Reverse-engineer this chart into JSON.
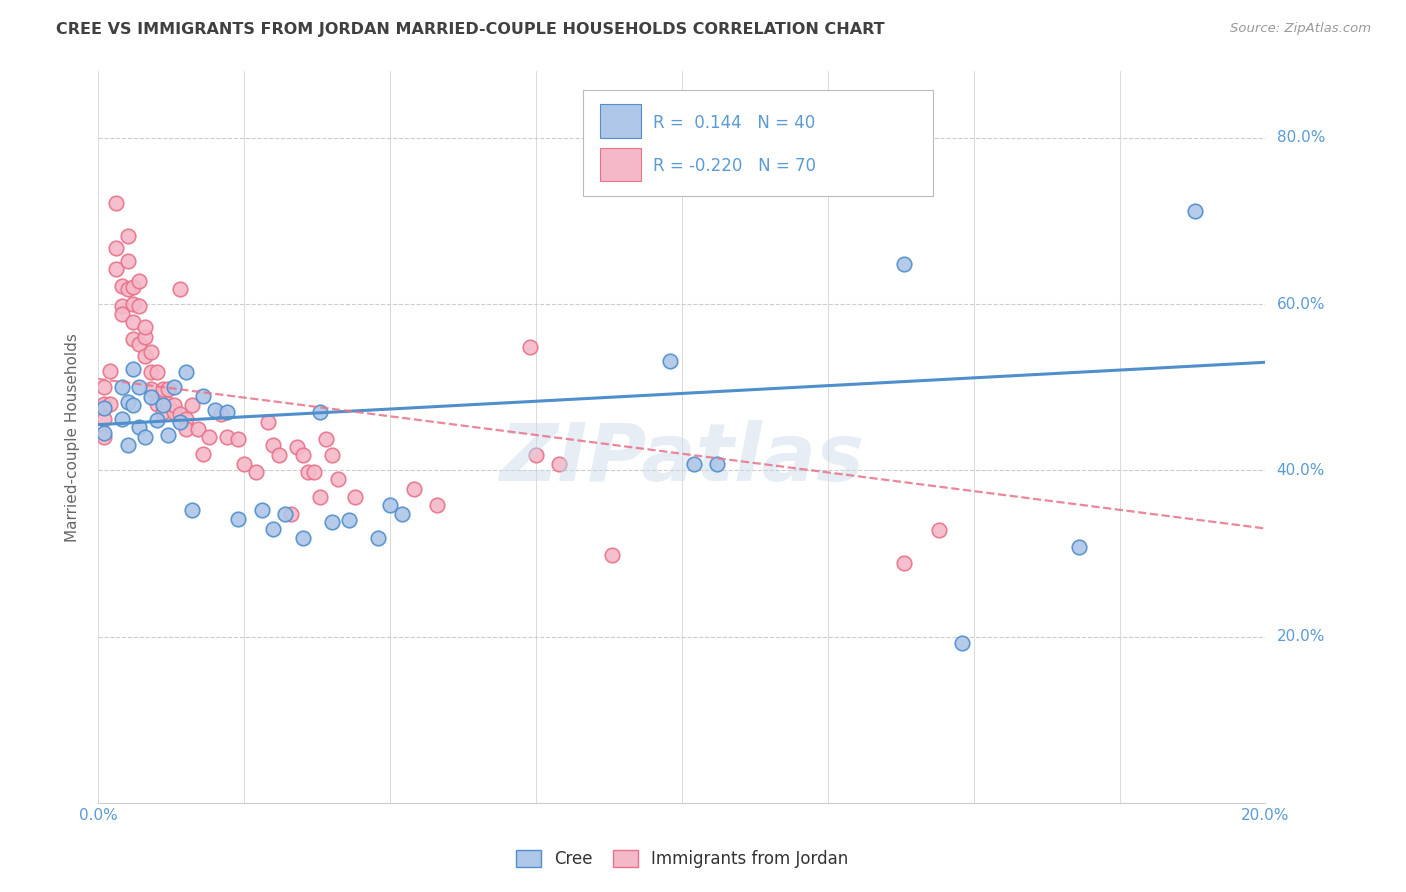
{
  "title": "CREE VS IMMIGRANTS FROM JORDAN MARRIED-COUPLE HOUSEHOLDS CORRELATION CHART",
  "source": "Source: ZipAtlas.com",
  "ylabel": "Married-couple Households",
  "xlim": [
    0.0,
    0.2
  ],
  "ylim": [
    0.0,
    0.88
  ],
  "yticks": [
    0.2,
    0.4,
    0.6,
    0.8
  ],
  "ytick_labels": [
    "20.0%",
    "40.0%",
    "60.0%",
    "80.0%"
  ],
  "xticks": [
    0.0,
    0.025,
    0.05,
    0.075,
    0.1,
    0.125,
    0.15,
    0.175,
    0.2
  ],
  "xtick_labels": [
    "0.0%",
    "",
    "",
    "",
    "",
    "",
    "",
    "",
    "20.0%"
  ],
  "legend_line1": "R =  0.144   N = 40",
  "legend_line2": "R = -0.220   N = 70",
  "cree_color": "#aec6e8",
  "jordan_color": "#f5b8c8",
  "line_cree_color": "#4f8fcc",
  "line_jordan_color": "#e8728a",
  "background_color": "#ffffff",
  "grid_color": "#cccccc",
  "title_color": "#404040",
  "axis_label_color": "#5b9bd5",
  "watermark": "ZIPatlas",
  "cree_scatter": [
    [
      0.001,
      0.445
    ],
    [
      0.001,
      0.475
    ],
    [
      0.004,
      0.5
    ],
    [
      0.004,
      0.462
    ],
    [
      0.005,
      0.43
    ],
    [
      0.005,
      0.482
    ],
    [
      0.006,
      0.522
    ],
    [
      0.006,
      0.478
    ],
    [
      0.007,
      0.452
    ],
    [
      0.007,
      0.5
    ],
    [
      0.008,
      0.44
    ],
    [
      0.009,
      0.488
    ],
    [
      0.01,
      0.46
    ],
    [
      0.011,
      0.478
    ],
    [
      0.012,
      0.442
    ],
    [
      0.013,
      0.5
    ],
    [
      0.014,
      0.458
    ],
    [
      0.015,
      0.518
    ],
    [
      0.016,
      0.352
    ],
    [
      0.018,
      0.49
    ],
    [
      0.02,
      0.472
    ],
    [
      0.022,
      0.47
    ],
    [
      0.024,
      0.342
    ],
    [
      0.028,
      0.352
    ],
    [
      0.03,
      0.33
    ],
    [
      0.032,
      0.348
    ],
    [
      0.035,
      0.318
    ],
    [
      0.038,
      0.47
    ],
    [
      0.04,
      0.338
    ],
    [
      0.043,
      0.34
    ],
    [
      0.048,
      0.318
    ],
    [
      0.05,
      0.358
    ],
    [
      0.052,
      0.348
    ],
    [
      0.098,
      0.532
    ],
    [
      0.102,
      0.408
    ],
    [
      0.106,
      0.408
    ],
    [
      0.138,
      0.648
    ],
    [
      0.148,
      0.192
    ],
    [
      0.168,
      0.308
    ],
    [
      0.188,
      0.712
    ]
  ],
  "jordan_scatter": [
    [
      0.001,
      0.5
    ],
    [
      0.001,
      0.48
    ],
    [
      0.001,
      0.462
    ],
    [
      0.001,
      0.44
    ],
    [
      0.002,
      0.48
    ],
    [
      0.002,
      0.52
    ],
    [
      0.003,
      0.722
    ],
    [
      0.003,
      0.668
    ],
    [
      0.003,
      0.642
    ],
    [
      0.004,
      0.622
    ],
    [
      0.004,
      0.598
    ],
    [
      0.004,
      0.588
    ],
    [
      0.005,
      0.682
    ],
    [
      0.005,
      0.652
    ],
    [
      0.005,
      0.618
    ],
    [
      0.006,
      0.62
    ],
    [
      0.006,
      0.6
    ],
    [
      0.006,
      0.578
    ],
    [
      0.006,
      0.558
    ],
    [
      0.007,
      0.552
    ],
    [
      0.007,
      0.628
    ],
    [
      0.007,
      0.598
    ],
    [
      0.008,
      0.56
    ],
    [
      0.008,
      0.572
    ],
    [
      0.008,
      0.538
    ],
    [
      0.009,
      0.518
    ],
    [
      0.009,
      0.542
    ],
    [
      0.009,
      0.498
    ],
    [
      0.01,
      0.518
    ],
    [
      0.01,
      0.48
    ],
    [
      0.011,
      0.498
    ],
    [
      0.011,
      0.47
    ],
    [
      0.012,
      0.48
    ],
    [
      0.012,
      0.498
    ],
    [
      0.013,
      0.47
    ],
    [
      0.013,
      0.478
    ],
    [
      0.014,
      0.618
    ],
    [
      0.014,
      0.468
    ],
    [
      0.015,
      0.462
    ],
    [
      0.015,
      0.45
    ],
    [
      0.016,
      0.478
    ],
    [
      0.017,
      0.45
    ],
    [
      0.018,
      0.42
    ],
    [
      0.019,
      0.44
    ],
    [
      0.021,
      0.468
    ],
    [
      0.022,
      0.44
    ],
    [
      0.024,
      0.438
    ],
    [
      0.025,
      0.408
    ],
    [
      0.027,
      0.398
    ],
    [
      0.029,
      0.458
    ],
    [
      0.03,
      0.43
    ],
    [
      0.031,
      0.418
    ],
    [
      0.033,
      0.348
    ],
    [
      0.034,
      0.428
    ],
    [
      0.035,
      0.418
    ],
    [
      0.036,
      0.398
    ],
    [
      0.037,
      0.398
    ],
    [
      0.038,
      0.368
    ],
    [
      0.039,
      0.438
    ],
    [
      0.04,
      0.418
    ],
    [
      0.041,
      0.39
    ],
    [
      0.044,
      0.368
    ],
    [
      0.054,
      0.378
    ],
    [
      0.058,
      0.358
    ],
    [
      0.074,
      0.548
    ],
    [
      0.075,
      0.418
    ],
    [
      0.079,
      0.408
    ],
    [
      0.088,
      0.298
    ],
    [
      0.138,
      0.288
    ],
    [
      0.144,
      0.328
    ]
  ],
  "cree_line_x": [
    0.0,
    0.2
  ],
  "cree_line_y": [
    0.455,
    0.53
  ],
  "jordan_line_x": [
    0.0,
    0.2
  ],
  "jordan_line_y": [
    0.51,
    0.33
  ]
}
